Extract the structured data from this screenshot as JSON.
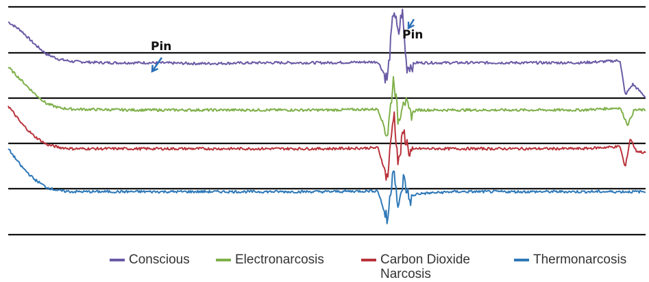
{
  "chart_data": {
    "type": "line",
    "title": "",
    "xlabel": "",
    "ylabel": "",
    "grid": true,
    "legend_position": "bottom",
    "annotations": [
      {
        "label": "Pin",
        "x": 0.225
      },
      {
        "label": "Pin",
        "x": 0.61
      }
    ],
    "series": [
      {
        "name": "Conscious",
        "color": "#6a5aa5",
        "baseline": 4.0,
        "points": [
          [
            0.0,
            4.95
          ],
          [
            0.02,
            4.75
          ],
          [
            0.04,
            4.45
          ],
          [
            0.06,
            4.2
          ],
          [
            0.08,
            4.08
          ],
          [
            0.1,
            4.03
          ],
          [
            0.15,
            4.0
          ],
          [
            0.22,
            4.0
          ],
          [
            0.3,
            3.98
          ],
          [
            0.4,
            4.0
          ],
          [
            0.5,
            4.0
          ],
          [
            0.58,
            4.02
          ],
          [
            0.595,
            3.6
          ],
          [
            0.605,
            5.3
          ],
          [
            0.612,
            4.6
          ],
          [
            0.618,
            5.25
          ],
          [
            0.625,
            3.9
          ],
          [
            0.632,
            3.95
          ],
          [
            0.64,
            4.0
          ],
          [
            0.7,
            4.0
          ],
          [
            0.8,
            4.0
          ],
          [
            0.9,
            4.0
          ],
          [
            0.96,
            4.05
          ],
          [
            0.968,
            3.25
          ],
          [
            0.98,
            3.5
          ],
          [
            1.0,
            3.2
          ]
        ]
      },
      {
        "name": "Electronarcosis",
        "color": "#7fb04a",
        "baseline": 2.9,
        "points": [
          [
            0.0,
            3.9
          ],
          [
            0.02,
            3.6
          ],
          [
            0.04,
            3.3
          ],
          [
            0.06,
            3.05
          ],
          [
            0.08,
            2.95
          ],
          [
            0.1,
            2.92
          ],
          [
            0.2,
            2.9
          ],
          [
            0.3,
            2.9
          ],
          [
            0.4,
            2.9
          ],
          [
            0.5,
            2.9
          ],
          [
            0.58,
            2.92
          ],
          [
            0.595,
            2.3
          ],
          [
            0.605,
            3.7
          ],
          [
            0.612,
            2.6
          ],
          [
            0.62,
            3.2
          ],
          [
            0.63,
            2.8
          ],
          [
            0.64,
            2.9
          ],
          [
            0.7,
            2.9
          ],
          [
            0.8,
            2.9
          ],
          [
            0.9,
            2.9
          ],
          [
            0.96,
            2.95
          ],
          [
            0.972,
            2.55
          ],
          [
            0.982,
            2.9
          ],
          [
            1.0,
            2.9
          ]
        ]
      },
      {
        "name": "Carbon Dioxide Narcosis",
        "color": "#b9333b",
        "baseline": 2.0,
        "points": [
          [
            0.0,
            3.0
          ],
          [
            0.02,
            2.6
          ],
          [
            0.04,
            2.3
          ],
          [
            0.06,
            2.1
          ],
          [
            0.08,
            2.03
          ],
          [
            0.1,
            2.0
          ],
          [
            0.2,
            2.0
          ],
          [
            0.3,
            2.0
          ],
          [
            0.4,
            2.0
          ],
          [
            0.5,
            2.0
          ],
          [
            0.58,
            2.02
          ],
          [
            0.595,
            1.3
          ],
          [
            0.605,
            2.9
          ],
          [
            0.612,
            1.6
          ],
          [
            0.62,
            2.4
          ],
          [
            0.63,
            1.9
          ],
          [
            0.64,
            2.0
          ],
          [
            0.7,
            2.0
          ],
          [
            0.8,
            2.0
          ],
          [
            0.9,
            2.0
          ],
          [
            0.96,
            2.05
          ],
          [
            0.968,
            1.55
          ],
          [
            0.976,
            2.25
          ],
          [
            0.985,
            1.95
          ],
          [
            1.0,
            1.9
          ]
        ]
      },
      {
        "name": "Thermonarcosis",
        "color": "#2e78b7",
        "baseline": 1.0,
        "points": [
          [
            0.0,
            2.0
          ],
          [
            0.02,
            1.6
          ],
          [
            0.04,
            1.3
          ],
          [
            0.06,
            1.1
          ],
          [
            0.08,
            1.02
          ],
          [
            0.1,
            1.0
          ],
          [
            0.2,
            1.0
          ],
          [
            0.3,
            1.0
          ],
          [
            0.4,
            1.0
          ],
          [
            0.5,
            1.0
          ],
          [
            0.58,
            1.02
          ],
          [
            0.595,
            0.3
          ],
          [
            0.605,
            1.7
          ],
          [
            0.612,
            0.5
          ],
          [
            0.62,
            1.3
          ],
          [
            0.63,
            0.8
          ],
          [
            0.64,
            0.95
          ],
          [
            0.7,
            1.0
          ],
          [
            0.8,
            1.0
          ],
          [
            0.9,
            1.0
          ],
          [
            1.0,
            1.0
          ]
        ]
      }
    ],
    "gridlines_y": [
      0,
      1,
      2,
      3,
      4,
      5
    ],
    "ylim": [
      0,
      5.3
    ],
    "xlim": [
      0,
      1
    ]
  }
}
